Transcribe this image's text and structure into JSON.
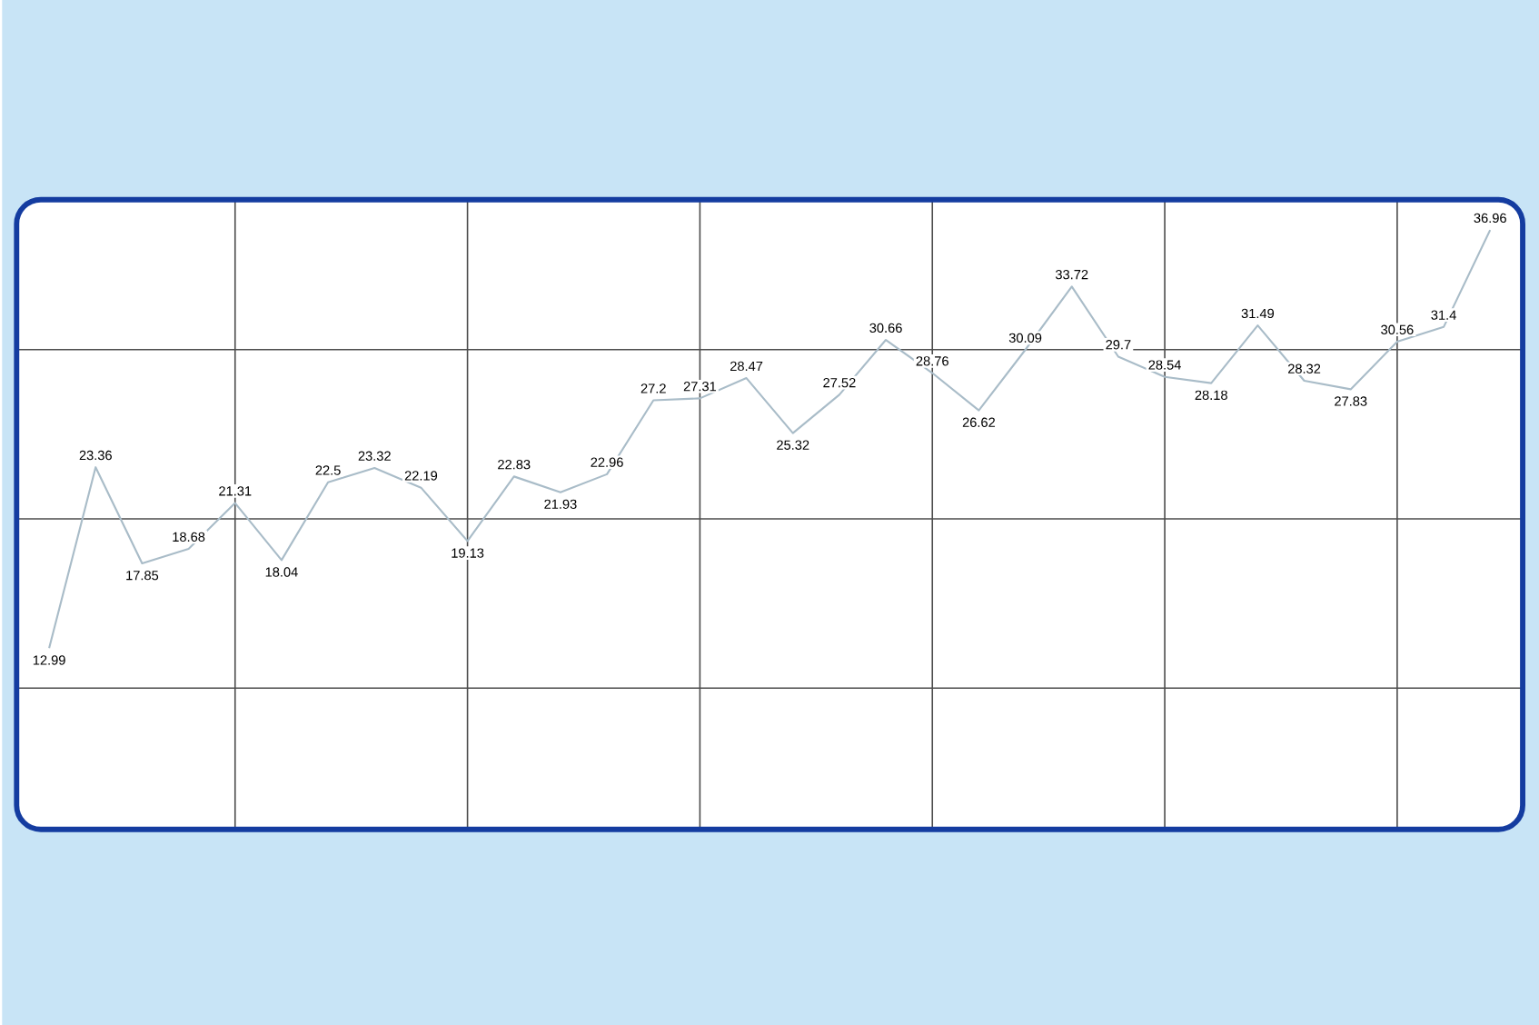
{
  "chart_data": {
    "type": "line",
    "categories": [
      null,
      null,
      null,
      null,
      null,
      null,
      null,
      null,
      null,
      null,
      null,
      null,
      null,
      null,
      null,
      null,
      null,
      null,
      null,
      null,
      null,
      null,
      null,
      null,
      null,
      null,
      null,
      null,
      null,
      null,
      null,
      null
    ],
    "values": [
      12.99,
      23.36,
      17.85,
      18.68,
      21.31,
      18.04,
      22.5,
      23.32,
      22.19,
      19.13,
      22.83,
      21.93,
      22.96,
      27.2,
      27.31,
      28.47,
      25.32,
      27.52,
      30.66,
      28.76,
      26.62,
      30.09,
      33.72,
      29.7,
      28.54,
      28.18,
      31.49,
      28.32,
      27.83,
      30.56,
      31.4,
      36.96
    ],
    "color": "#a9bcc8",
    "ylim": [
      2.6,
      38.7
    ],
    "yticks": [
      {
        "value": 10.7,
        "label": null
      },
      {
        "value": 20.4,
        "label": null
      },
      {
        "value": 30.1,
        "label": null
      }
    ],
    "grid": true,
    "data_labels": true,
    "marker": "none",
    "line_style": "solid"
  }
}
